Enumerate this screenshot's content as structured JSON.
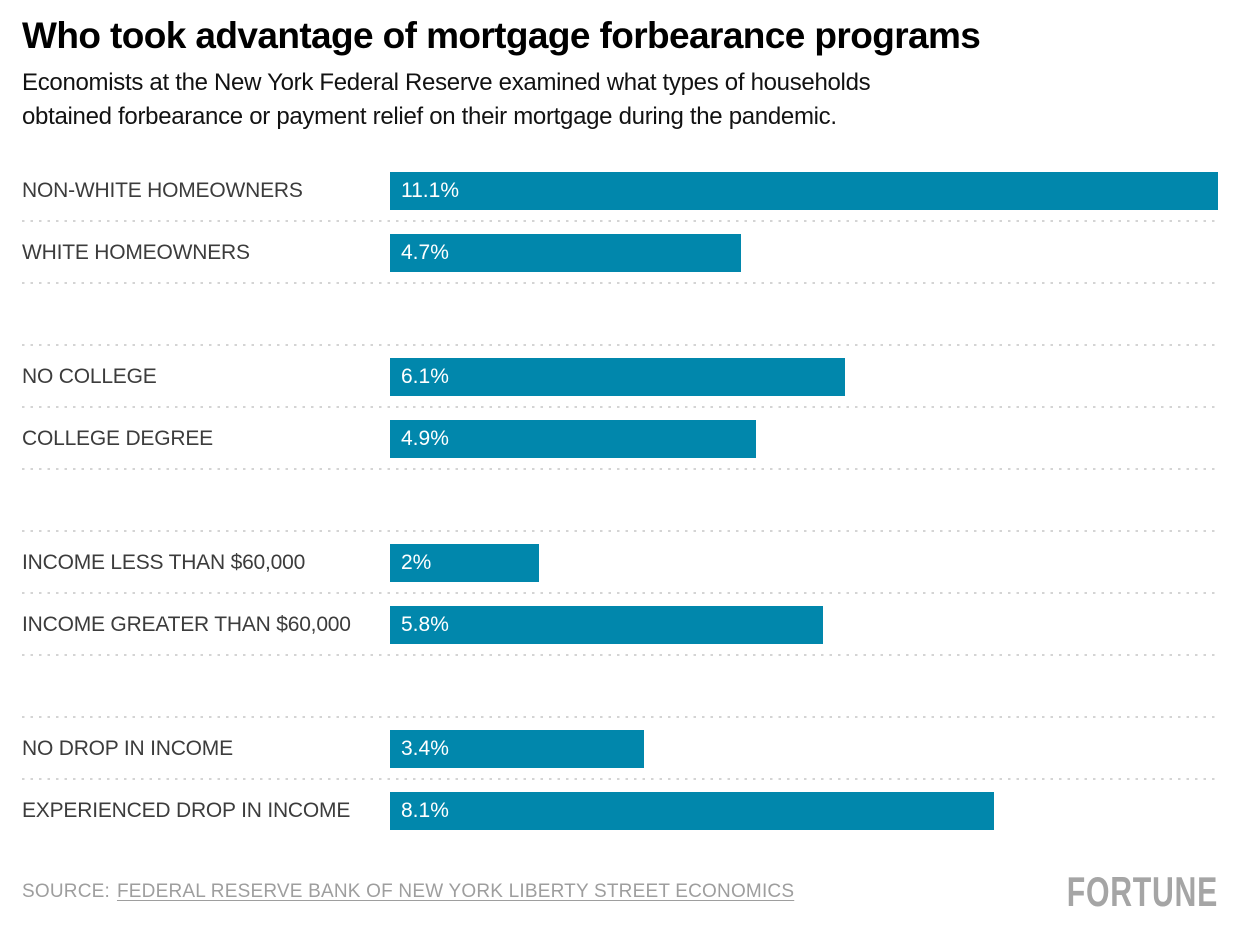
{
  "header": {
    "title": "Who took advantage of mortgage forbearance programs",
    "subtitle_lines": [
      "Economists at the New York Federal Reserve examined what types of households",
      "obtained forbearance or payment relief on their mortgage during the pandemic."
    ]
  },
  "chart_data": {
    "type": "bar",
    "orientation": "horizontal",
    "unit": "%",
    "xlim": [
      0,
      11.1
    ],
    "max_value": 11.1,
    "bar_color": "#0187ac",
    "grid": false,
    "legend": false,
    "categories": [
      "NON-WHITE HOMEOWNERS",
      "WHITE HOMEOWNERS",
      "NO COLLEGE",
      "COLLEGE DEGREE",
      "INCOME LESS THAN $60,000",
      "INCOME GREATER THAN $60,000",
      "NO DROP IN INCOME",
      "EXPERIENCED DROP IN INCOME"
    ],
    "values": [
      11.1,
      4.7,
      6.1,
      4.9,
      2,
      5.8,
      3.4,
      8.1
    ],
    "value_labels": [
      "11.1%",
      "4.7%",
      "6.1%",
      "4.9%",
      "2%",
      "5.8%",
      "3.4%",
      "8.1%"
    ],
    "rows": [
      {
        "type": "bar",
        "label": "NON-WHITE HOMEOWNERS",
        "value": 11.1,
        "value_label": "11.1%",
        "divider": true
      },
      {
        "type": "bar",
        "label": "WHITE HOMEOWNERS",
        "value": 4.7,
        "value_label": "4.7%",
        "divider": true
      },
      {
        "type": "spacer",
        "divider": true
      },
      {
        "type": "bar",
        "label": "NO COLLEGE",
        "value": 6.1,
        "value_label": "6.1%",
        "divider": true
      },
      {
        "type": "bar",
        "label": "COLLEGE DEGREE",
        "value": 4.9,
        "value_label": "4.9%",
        "divider": true
      },
      {
        "type": "spacer",
        "divider": true
      },
      {
        "type": "bar",
        "label": "INCOME LESS THAN $60,000",
        "value": 2,
        "value_label": "2%",
        "divider": true
      },
      {
        "type": "bar",
        "label": "INCOME GREATER THAN $60,000",
        "value": 5.8,
        "value_label": "5.8%",
        "divider": true
      },
      {
        "type": "spacer",
        "divider": true
      },
      {
        "type": "bar",
        "label": "NO DROP IN INCOME",
        "value": 3.4,
        "value_label": "3.4%",
        "divider": true
      },
      {
        "type": "bar",
        "label": "EXPERIENCED DROP IN INCOME",
        "value": 8.1,
        "value_label": "8.1%",
        "divider": false
      }
    ]
  },
  "footer": {
    "source_prefix": "SOURCE:",
    "source_link": "FEDERAL RESERVE BANK OF NEW YORK LIBERTY STREET ECONOMICS",
    "brand": "FORTUNE"
  },
  "colors": {
    "bar": "#0187ac",
    "bar_value_text": "#ffffff",
    "category_text": "#3c3c3c",
    "divider": "#d4d4d4",
    "source_text": "#9e9e9e",
    "brand_text": "#a5a5a5"
  }
}
